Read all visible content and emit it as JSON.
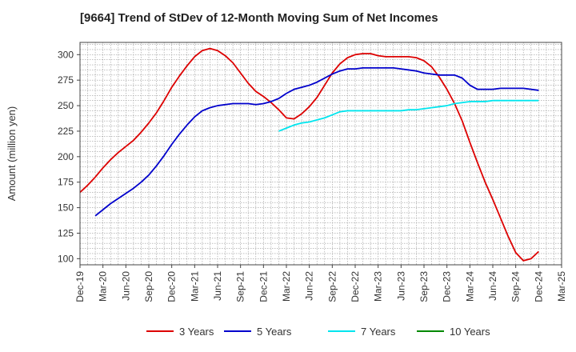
{
  "chart_data": {
    "type": "line",
    "title": "[9664]  Trend of StDev of 12-Month Moving Sum of Net Incomes",
    "ylabel": "Amount (million yen)",
    "xlabel": "",
    "ylim": [
      94,
      312
    ],
    "yticks": [
      100,
      125,
      150,
      175,
      200,
      225,
      250,
      275,
      300
    ],
    "xrange": [
      "2019-12",
      "2025-03"
    ],
    "xticks": [
      "Dec-19",
      "Mar-20",
      "Jun-20",
      "Sep-20",
      "Dec-20",
      "Mar-21",
      "Jun-21",
      "Sep-21",
      "Dec-21",
      "Mar-22",
      "Jun-22",
      "Sep-22",
      "Dec-22",
      "Mar-23",
      "Jun-23",
      "Sep-23",
      "Dec-23",
      "Mar-24",
      "Jun-24",
      "Sep-24",
      "Dec-24",
      "Mar-25"
    ],
    "grid": true,
    "legend_position": "bottom",
    "series": [
      {
        "name": "3 Years",
        "color": "#dd0000",
        "points": [
          [
            "2019-12",
            165
          ],
          [
            "2020-01",
            172
          ],
          [
            "2020-02",
            180
          ],
          [
            "2020-03",
            189
          ],
          [
            "2020-04",
            197
          ],
          [
            "2020-05",
            204
          ],
          [
            "2020-06",
            210
          ],
          [
            "2020-07",
            216
          ],
          [
            "2020-08",
            224
          ],
          [
            "2020-09",
            233
          ],
          [
            "2020-10",
            243
          ],
          [
            "2020-11",
            255
          ],
          [
            "2020-12",
            268
          ],
          [
            "2021-01",
            279
          ],
          [
            "2021-02",
            289
          ],
          [
            "2021-03",
            298
          ],
          [
            "2021-04",
            304
          ],
          [
            "2021-05",
            306
          ],
          [
            "2021-06",
            304
          ],
          [
            "2021-07",
            299
          ],
          [
            "2021-08",
            292
          ],
          [
            "2021-09",
            282
          ],
          [
            "2021-10",
            272
          ],
          [
            "2021-11",
            264
          ],
          [
            "2021-12",
            259
          ],
          [
            "2022-01",
            253
          ],
          [
            "2022-02",
            246
          ],
          [
            "2022-03",
            238
          ],
          [
            "2022-04",
            237
          ],
          [
            "2022-05",
            242
          ],
          [
            "2022-06",
            249
          ],
          [
            "2022-07",
            258
          ],
          [
            "2022-08",
            270
          ],
          [
            "2022-09",
            282
          ],
          [
            "2022-10",
            291
          ],
          [
            "2022-11",
            297
          ],
          [
            "2022-12",
            300
          ],
          [
            "2023-01",
            301
          ],
          [
            "2023-02",
            301
          ],
          [
            "2023-03",
            299
          ],
          [
            "2023-04",
            298
          ],
          [
            "2023-05",
            298
          ],
          [
            "2023-06",
            298
          ],
          [
            "2023-07",
            298
          ],
          [
            "2023-08",
            297
          ],
          [
            "2023-09",
            294
          ],
          [
            "2023-10",
            288
          ],
          [
            "2023-11",
            278
          ],
          [
            "2023-12",
            266
          ],
          [
            "2024-01",
            252
          ],
          [
            "2024-02",
            235
          ],
          [
            "2024-03",
            214
          ],
          [
            "2024-04",
            194
          ],
          [
            "2024-05",
            175
          ],
          [
            "2024-06",
            158
          ],
          [
            "2024-07",
            140
          ],
          [
            "2024-08",
            122
          ],
          [
            "2024-09",
            106
          ],
          [
            "2024-10",
            98
          ],
          [
            "2024-11",
            100
          ],
          [
            "2024-12",
            107
          ]
        ]
      },
      {
        "name": "5 Years",
        "color": "#0000cc",
        "points": [
          [
            "2020-02",
            142
          ],
          [
            "2020-03",
            148
          ],
          [
            "2020-04",
            154
          ],
          [
            "2020-05",
            159
          ],
          [
            "2020-06",
            164
          ],
          [
            "2020-07",
            169
          ],
          [
            "2020-08",
            175
          ],
          [
            "2020-09",
            182
          ],
          [
            "2020-10",
            191
          ],
          [
            "2020-11",
            201
          ],
          [
            "2020-12",
            212
          ],
          [
            "2021-01",
            222
          ],
          [
            "2021-02",
            231
          ],
          [
            "2021-03",
            239
          ],
          [
            "2021-04",
            245
          ],
          [
            "2021-05",
            248
          ],
          [
            "2021-06",
            250
          ],
          [
            "2021-07",
            251
          ],
          [
            "2021-08",
            252
          ],
          [
            "2021-09",
            252
          ],
          [
            "2021-10",
            252
          ],
          [
            "2021-11",
            251
          ],
          [
            "2021-12",
            252
          ],
          [
            "2022-01",
            254
          ],
          [
            "2022-02",
            257
          ],
          [
            "2022-03",
            262
          ],
          [
            "2022-04",
            266
          ],
          [
            "2022-05",
            268
          ],
          [
            "2022-06",
            270
          ],
          [
            "2022-07",
            273
          ],
          [
            "2022-08",
            277
          ],
          [
            "2022-09",
            281
          ],
          [
            "2022-10",
            284
          ],
          [
            "2022-11",
            286
          ],
          [
            "2022-12",
            286
          ],
          [
            "2023-01",
            287
          ],
          [
            "2023-02",
            287
          ],
          [
            "2023-03",
            287
          ],
          [
            "2023-04",
            287
          ],
          [
            "2023-05",
            287
          ],
          [
            "2023-06",
            286
          ],
          [
            "2023-07",
            285
          ],
          [
            "2023-08",
            284
          ],
          [
            "2023-09",
            282
          ],
          [
            "2023-10",
            281
          ],
          [
            "2023-11",
            280
          ],
          [
            "2023-12",
            280
          ],
          [
            "2024-01",
            280
          ],
          [
            "2024-02",
            277
          ],
          [
            "2024-03",
            270
          ],
          [
            "2024-04",
            266
          ],
          [
            "2024-05",
            266
          ],
          [
            "2024-06",
            266
          ],
          [
            "2024-07",
            267
          ],
          [
            "2024-08",
            267
          ],
          [
            "2024-09",
            267
          ],
          [
            "2024-10",
            267
          ],
          [
            "2024-11",
            266
          ],
          [
            "2024-12",
            265
          ]
        ]
      },
      {
        "name": "7 Years",
        "color": "#00e5ee",
        "points": [
          [
            "2022-02",
            225
          ],
          [
            "2022-03",
            228
          ],
          [
            "2022-04",
            231
          ],
          [
            "2022-05",
            233
          ],
          [
            "2022-06",
            234
          ],
          [
            "2022-07",
            236
          ],
          [
            "2022-08",
            238
          ],
          [
            "2022-09",
            241
          ],
          [
            "2022-10",
            244
          ],
          [
            "2022-11",
            245
          ],
          [
            "2022-12",
            245
          ],
          [
            "2023-01",
            245
          ],
          [
            "2023-02",
            245
          ],
          [
            "2023-03",
            245
          ],
          [
            "2023-04",
            245
          ],
          [
            "2023-05",
            245
          ],
          [
            "2023-06",
            245
          ],
          [
            "2023-07",
            246
          ],
          [
            "2023-08",
            246
          ],
          [
            "2023-09",
            247
          ],
          [
            "2023-10",
            248
          ],
          [
            "2023-11",
            249
          ],
          [
            "2023-12",
            250
          ],
          [
            "2024-01",
            252
          ],
          [
            "2024-02",
            253
          ],
          [
            "2024-03",
            254
          ],
          [
            "2024-04",
            254
          ],
          [
            "2024-05",
            254
          ],
          [
            "2024-06",
            255
          ],
          [
            "2024-07",
            255
          ],
          [
            "2024-08",
            255
          ],
          [
            "2024-09",
            255
          ],
          [
            "2024-10",
            255
          ],
          [
            "2024-11",
            255
          ],
          [
            "2024-12",
            255
          ]
        ]
      },
      {
        "name": "10 Years",
        "color": "#008800",
        "points": []
      }
    ]
  }
}
